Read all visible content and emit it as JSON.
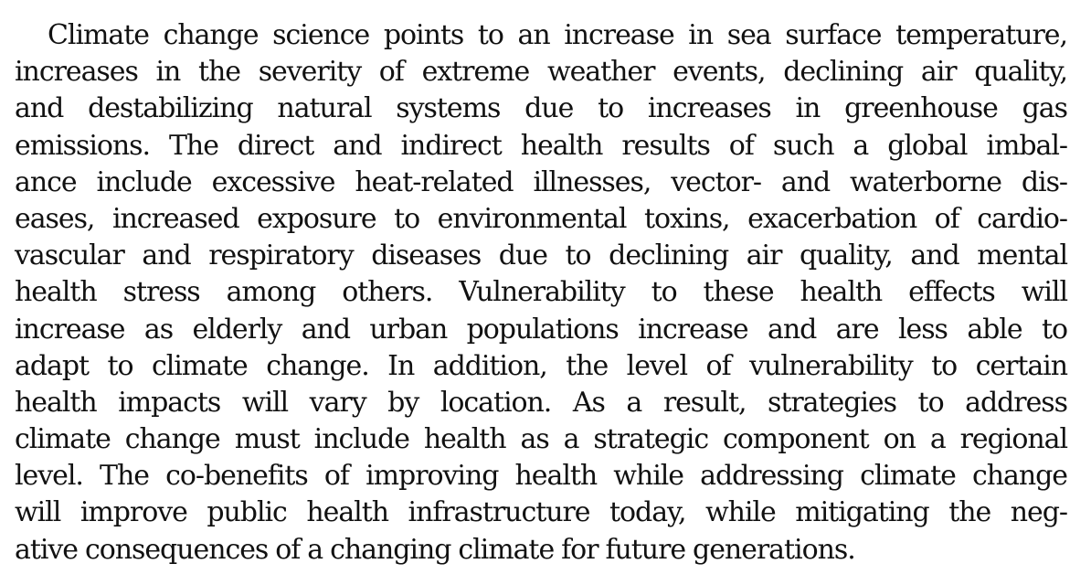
{
  "paragraph": {
    "lines": [
      "Climate change science points to an increase in sea surface temperature,",
      "increases in the severity of extreme weather events, declining air quality,",
      "and destabilizing natural systems due to increases in greenhouse gas",
      "emissions. The direct and indirect health results of such a global imbal-",
      "ance include excessive heat-related illnesses, vector- and waterborne dis-",
      "eases, increased exposure to environmental toxins, exacerbation of cardio-",
      "vascular and respiratory diseases due to declining air quality, and mental",
      "health stress among others. Vulnerability to these health effects will",
      "increase as elderly and urban populations increase and are less able to",
      "adapt to climate change. In addition, the level of vulnerability to certain",
      "health impacts will vary by location. As a result, strategies to address",
      "climate change must include health as a strategic component on a regional",
      "level. The co-benefits of improving health while addressing climate change",
      "will improve public health infrastructure today, while mitigating the neg-",
      "ative consequences of a changing climate for future generations."
    ]
  }
}
